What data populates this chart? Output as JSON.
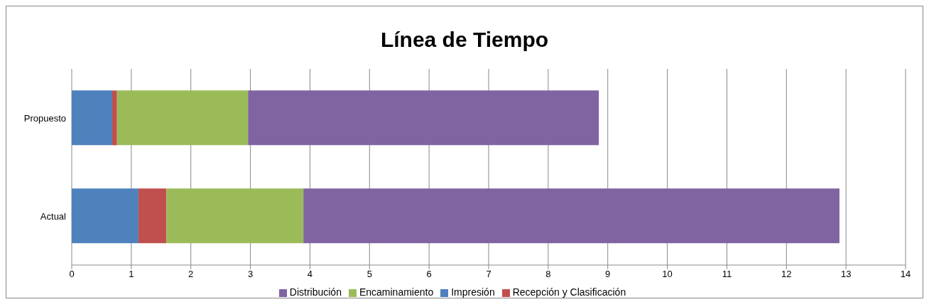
{
  "chart_data": {
    "type": "bar",
    "title": "Línea de Tiempo",
    "orientation": "horizontal",
    "stacked": true,
    "categories": [
      "Propuesto",
      "Actual"
    ],
    "series": [
      {
        "name": "Impresión",
        "color": "#4f81bd",
        "values": [
          0.68,
          1.12
        ]
      },
      {
        "name": "Recepción y Clasificación",
        "color": "#c0504d",
        "values": [
          0.08,
          0.47
        ]
      },
      {
        "name": "Encaminamiento",
        "color": "#9bbb59",
        "values": [
          2.2,
          2.3
        ]
      },
      {
        "name": "Distribución",
        "color": "#8064a2",
        "values": [
          5.89,
          9.0
        ]
      }
    ],
    "xlim": [
      0,
      14
    ],
    "xticks": [
      0,
      1,
      2,
      3,
      4,
      5,
      6,
      7,
      8,
      9,
      10,
      11,
      12,
      13,
      14
    ],
    "grid": "x",
    "legend": "bottom"
  }
}
